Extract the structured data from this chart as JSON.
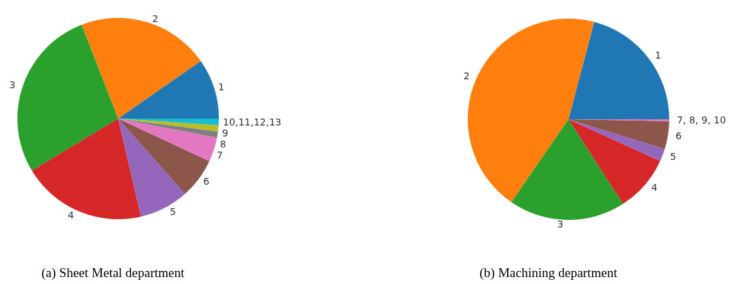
{
  "chart_data": [
    {
      "type": "pie",
      "title": "(a) Sheet Metal department",
      "categories": [
        "1",
        "2",
        "3",
        "4",
        "5",
        "6",
        "7",
        "8",
        "9",
        "10,11,12,13"
      ],
      "values": [
        9.7,
        21.2,
        27.75,
        20,
        7.9,
        6.5,
        3.9,
        1,
        1,
        1.05
      ],
      "colors": [
        "#1f77b4",
        "#ff7f0e",
        "#2ca02c",
        "#d62728",
        "#9467bd",
        "#8c564b",
        "#e377c2",
        "#7f7f7f",
        "#bcbd22",
        "#17becf"
      ]
    },
    {
      "type": "pie",
      "title": "(b) Machining department",
      "categories": [
        "1",
        "2",
        "3",
        "4",
        "5",
        "6",
        "7, 8, 9, 10"
      ],
      "values": [
        20.9,
        44.5,
        18.7,
        9.1,
        2,
        4.5,
        0.3
      ],
      "colors": [
        "#1f77b4",
        "#ff7f0e",
        "#2ca02c",
        "#d62728",
        "#9467bd",
        "#8c564b",
        "#e377c2"
      ]
    }
  ]
}
